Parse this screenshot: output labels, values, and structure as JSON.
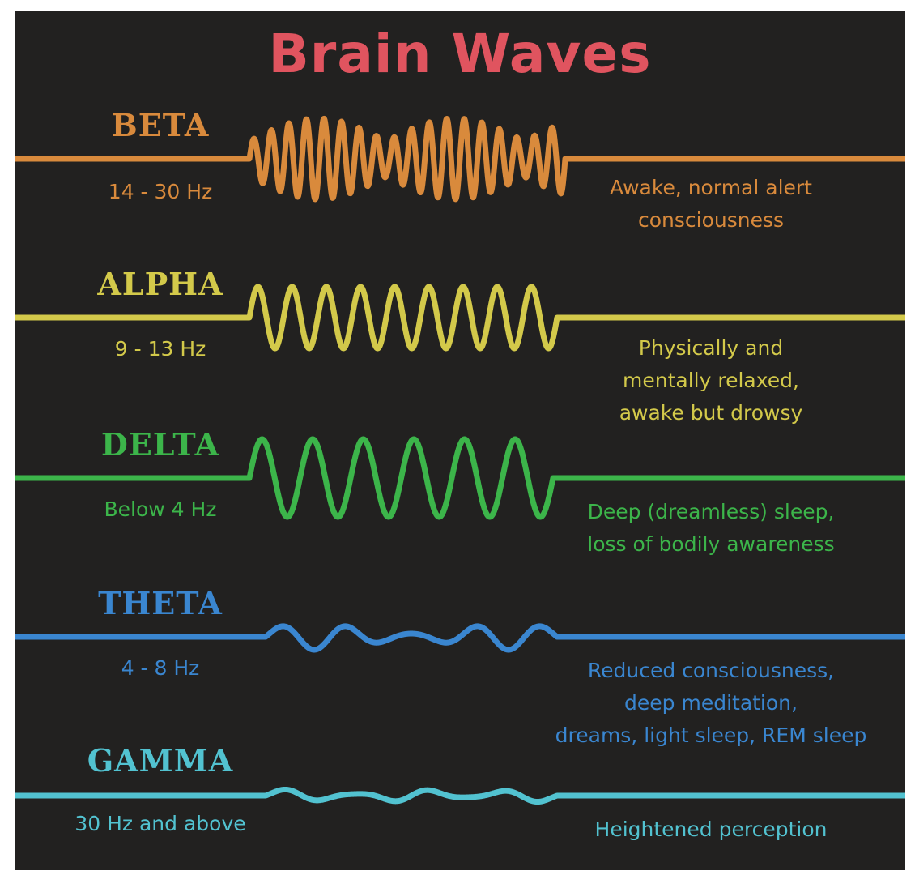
{
  "title": "Brain Waves",
  "title_color": "#e0545f",
  "background_color": "#222120",
  "waves": [
    {
      "name": "BETA",
      "frequency": "14 - 30 Hz",
      "description": [
        "Awake, normal alert",
        "consciousness"
      ],
      "color": "#d98a3c"
    },
    {
      "name": "ALPHA",
      "frequency": "9 - 13 Hz",
      "description": [
        "Physically and",
        "mentally relaxed,",
        "awake but drowsy"
      ],
      "color": "#d3c94a"
    },
    {
      "name": "DELTA",
      "frequency": "Below 4 Hz",
      "description": [
        "Deep (dreamless) sleep,",
        "loss of bodily awareness"
      ],
      "color": "#3cb54a"
    },
    {
      "name": "THETA",
      "frequency": "4 - 8 Hz",
      "description": [
        "Reduced consciousness,",
        "deep meditation,",
        "dreams, light sleep, REM sleep"
      ],
      "color": "#3a86d0"
    },
    {
      "name": "GAMMA",
      "frequency": "30 Hz and above",
      "description": [
        "Heightened perception"
      ],
      "color": "#52c2d0"
    }
  ]
}
